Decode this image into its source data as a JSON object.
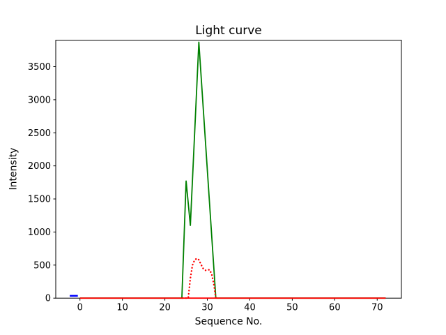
{
  "figure": {
    "background": "#ffffff",
    "axis_color": "#000000"
  },
  "chart_data": {
    "type": "line",
    "title": "Light curve",
    "xlabel": "Sequence No.",
    "ylabel": "Intensity",
    "xlim": [
      -5.7,
      75.7
    ],
    "ylim": [
      0,
      3900
    ],
    "x_ticks": [
      0,
      10,
      20,
      30,
      40,
      50,
      60,
      70
    ],
    "y_ticks": [
      0,
      500,
      1000,
      1500,
      2000,
      2500,
      3000,
      3500
    ],
    "grid": false,
    "legend": null,
    "series": [
      {
        "name": "green-curve",
        "color": "#008000",
        "style": "solid",
        "width": 1.8,
        "points": [
          [
            0,
            0
          ],
          [
            24,
            0
          ],
          [
            25,
            1770
          ],
          [
            26,
            1100
          ],
          [
            28,
            3870
          ],
          [
            32,
            0
          ],
          [
            72,
            0
          ]
        ]
      },
      {
        "name": "red-baseline",
        "color": "#ff0000",
        "style": "solid",
        "width": 1.8,
        "points": [
          [
            0,
            0
          ],
          [
            72,
            0
          ]
        ]
      },
      {
        "name": "red-dotted-curve",
        "color": "#ff0000",
        "style": "dotted",
        "width": 2.4,
        "points": [
          [
            24.2,
            0
          ],
          [
            25.5,
            0
          ],
          [
            26,
            300
          ],
          [
            26.5,
            500
          ],
          [
            27,
            575
          ],
          [
            27.5,
            600
          ],
          [
            28,
            580
          ],
          [
            28.5,
            510
          ],
          [
            29,
            450
          ],
          [
            29.5,
            420
          ],
          [
            30,
            425
          ],
          [
            30.5,
            430
          ],
          [
            31,
            370
          ],
          [
            31.5,
            220
          ],
          [
            32,
            0
          ]
        ]
      },
      {
        "name": "blue-segment",
        "color": "#0000ff",
        "style": "solid",
        "width": 2.5,
        "points": [
          [
            -2.4,
            35
          ],
          [
            -0.5,
            35
          ]
        ]
      }
    ]
  }
}
